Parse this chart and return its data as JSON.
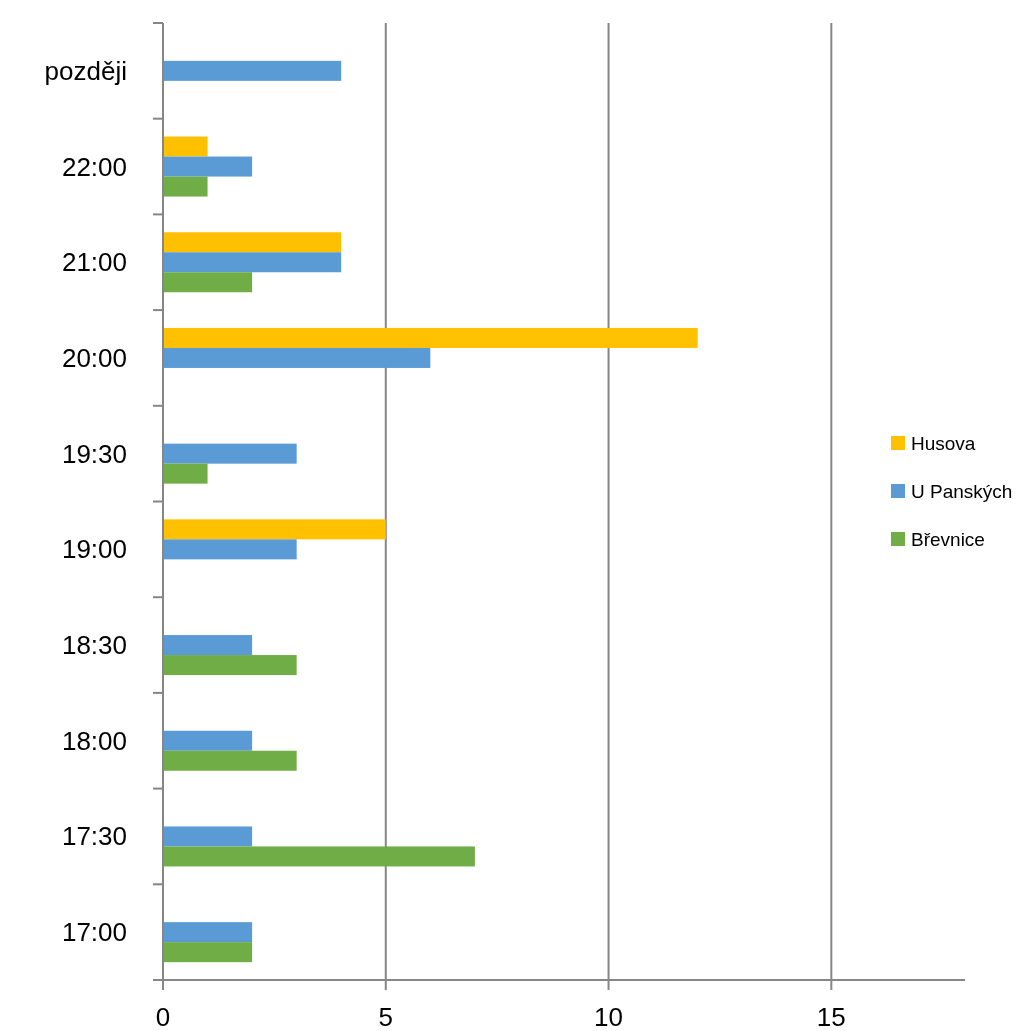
{
  "chart_data": {
    "type": "bar",
    "orientation": "horizontal",
    "categories": [
      "později",
      "22:00",
      "21:00",
      "20:00",
      "19:30",
      "19:00",
      "18:30",
      "18:00",
      "17:30",
      "17:00"
    ],
    "series": [
      {
        "name": "Husova",
        "color": "#ffc000",
        "values": [
          null,
          1,
          4,
          12,
          null,
          5,
          null,
          null,
          null,
          null
        ]
      },
      {
        "name": "U Panských",
        "color": "#5b9bd5",
        "values": [
          4,
          2,
          4,
          6,
          3,
          3,
          2,
          2,
          2,
          2
        ]
      },
      {
        "name": "Břevnice",
        "color": "#70ad47",
        "values": [
          null,
          1,
          2,
          null,
          1,
          null,
          3,
          3,
          7,
          2
        ]
      }
    ],
    "xlim": [
      0,
      18
    ],
    "xticks": [
      0,
      5,
      10,
      15
    ],
    "grid": "x",
    "legend": "right"
  }
}
